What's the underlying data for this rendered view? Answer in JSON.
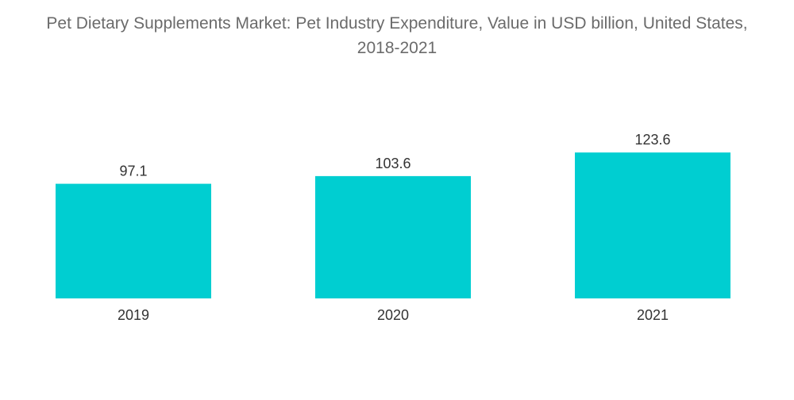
{
  "chart_data": {
    "type": "bar",
    "title": "Pet Dietary Supplements Market: Pet Industry Expenditure, Value in USD billion, United States, 2018-2021",
    "categories": [
      "2019",
      "2020",
      "2021"
    ],
    "values": [
      97.1,
      103.6,
      123.6
    ],
    "value_labels": [
      "97.1",
      "103.6",
      "123.6"
    ],
    "xlabel": "",
    "ylabel": "",
    "grid": false,
    "legend": "none",
    "bar_color": "#00CED1"
  }
}
